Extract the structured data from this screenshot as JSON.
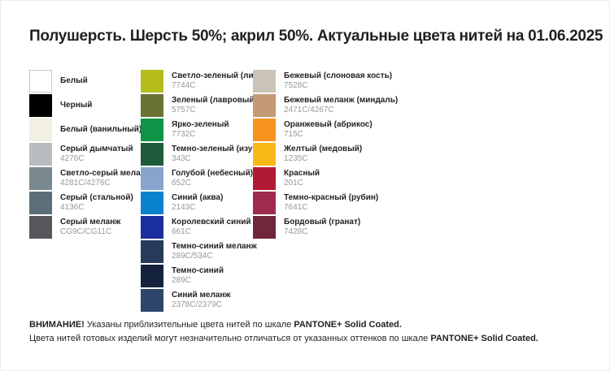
{
  "title": "Полушерсть. Шерсть 50%; акрил 50%. Актуальные цвета нитей на 01.06.2025",
  "columns": [
    {
      "items": [
        {
          "name": "Белый",
          "code": "",
          "hex": "#ffffff",
          "border": "#c8cacb"
        },
        {
          "name": "Черный",
          "code": "",
          "hex": "#010101"
        },
        {
          "name": "Белый (ванильный)",
          "code": "",
          "hex": "#f1f0e2"
        },
        {
          "name": "Серый дымчатый",
          "code": "4276C",
          "hex": "#b9bdc0"
        },
        {
          "name": "Светло-серый меланж",
          "code": "4281C/4276C",
          "hex": "#79898f"
        },
        {
          "name": "Серый (стальной)",
          "code": "4136C",
          "hex": "#5c6e78"
        },
        {
          "name": "Серый меланж",
          "code": "CG9C/CG11C",
          "hex": "#55575c"
        }
      ]
    },
    {
      "items": [
        {
          "name": "Светло-зеленый (липа)",
          "code": "7744C",
          "hex": "#b4bd1b"
        },
        {
          "name": "Зеленый (лавровый)",
          "code": "5757C",
          "hex": "#6a7334"
        },
        {
          "name": "Ярко-зеленый",
          "code": "7732C",
          "hex": "#0d9447"
        },
        {
          "name": "Темно-зеленый (изумруд)",
          "code": "343C",
          "hex": "#1e5b3a"
        },
        {
          "name": "Голубой (небесный)",
          "code": "652C",
          "hex": "#87a5cc"
        },
        {
          "name": "Синий (аква)",
          "code": "2143C",
          "hex": "#0a83cf"
        },
        {
          "name": "Королевский синий",
          "code": "661C",
          "hex": "#1b2f9e"
        },
        {
          "name": "Темно-синий меланж",
          "code": "289C/534C",
          "hex": "#273a5b"
        },
        {
          "name": "Темно-синий",
          "code": "289C",
          "hex": "#14223e"
        },
        {
          "name": "Синий меланж",
          "code": "2378C/2379C",
          "hex": "#2f4569"
        }
      ]
    },
    {
      "items": [
        {
          "name": "Бежевый (слоновая кость)",
          "code": "7528C",
          "hex": "#cac3b7"
        },
        {
          "name": "Бежевый меланж (миндаль)",
          "code": "2471C/4267C",
          "hex": "#c39a73"
        },
        {
          "name": "Оранжевый (абрикос)",
          "code": "715C",
          "hex": "#f7941e"
        },
        {
          "name": "Желтый (медовый)",
          "code": "1235C",
          "hex": "#fbb917"
        },
        {
          "name": "Красный",
          "code": "201C",
          "hex": "#b11a35"
        },
        {
          "name": "Темно-красный (рубин)",
          "code": "7641C",
          "hex": "#9f2c4d"
        },
        {
          "name": "Бордовый (гранат)",
          "code": "7428C",
          "hex": "#6f2839"
        }
      ]
    }
  ],
  "footer": {
    "line1_bold_prefix": "ВНИМАНИЕ!",
    "line1_text": " Указаны приблизительные цвета нитей по шкале ",
    "line1_bold_suffix": "PANTONE+ Solid Coated.",
    "line2_text": "Цвета нитей готовых изделий могут незначительно отличаться от указанных оттенков по шкале ",
    "line2_bold_suffix": "PANTONE+ Solid Coated."
  }
}
